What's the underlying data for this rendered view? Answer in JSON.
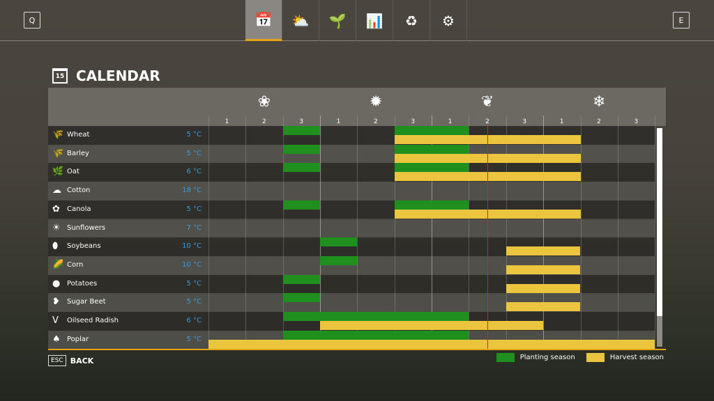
{
  "topbar": {
    "left_key": "Q",
    "right_key": "E",
    "tabs": [
      {
        "name": "calendar",
        "icon": "📅",
        "active": true
      },
      {
        "name": "weather",
        "icon": "⛅"
      },
      {
        "name": "crops",
        "icon": "🌱"
      },
      {
        "name": "prices",
        "icon": "📊"
      },
      {
        "name": "cycle",
        "icon": "♻"
      },
      {
        "name": "settings",
        "icon": "⚙"
      }
    ]
  },
  "page": {
    "title": "CALENDAR",
    "calendar_icon_day": "15"
  },
  "seasons": [
    {
      "name": "spring",
      "icon": "❀"
    },
    {
      "name": "summer",
      "icon": "✹"
    },
    {
      "name": "autumn",
      "icon": "❦"
    },
    {
      "name": "winter",
      "icon": "❄"
    }
  ],
  "periods": [
    "1",
    "2",
    "3",
    "1",
    "2",
    "3",
    "1",
    "2",
    "3",
    "1",
    "2",
    "3"
  ],
  "current_period": 7.5,
  "crops": [
    {
      "name": "Wheat",
      "icon": "🌾",
      "temp": "5 °C",
      "planting": [
        [
          2,
          3
        ],
        [
          5,
          7
        ]
      ],
      "harvest": [
        [
          5,
          10
        ]
      ]
    },
    {
      "name": "Barley",
      "icon": "🌾",
      "temp": "5 °C",
      "planting": [
        [
          2,
          3
        ],
        [
          5,
          7
        ]
      ],
      "harvest": [
        [
          5,
          10
        ]
      ]
    },
    {
      "name": "Oat",
      "icon": "🌿",
      "temp": "6 °C",
      "planting": [
        [
          2,
          3
        ],
        [
          5,
          7
        ]
      ],
      "harvest": [
        [
          5,
          10
        ]
      ]
    },
    {
      "name": "Cotton",
      "icon": "☁",
      "temp": "18 °C",
      "planting": [],
      "harvest": []
    },
    {
      "name": "Canola",
      "icon": "✿",
      "temp": "5 °C",
      "planting": [
        [
          2,
          3
        ],
        [
          5,
          7
        ]
      ],
      "harvest": [
        [
          5,
          10
        ]
      ]
    },
    {
      "name": "Sunflowers",
      "icon": "☀",
      "temp": "7 °C",
      "planting": [],
      "harvest": []
    },
    {
      "name": "Soybeans",
      "icon": "⬮",
      "temp": "10 °C",
      "planting": [
        [
          3,
          4
        ]
      ],
      "harvest": [
        [
          8,
          10
        ]
      ]
    },
    {
      "name": "Corn",
      "icon": "🌽",
      "temp": "10 °C",
      "planting": [
        [
          3,
          4
        ]
      ],
      "harvest": [
        [
          8,
          10
        ]
      ]
    },
    {
      "name": "Potatoes",
      "icon": "●",
      "temp": "5 °C",
      "planting": [
        [
          2,
          3
        ]
      ],
      "harvest": [
        [
          8,
          10
        ]
      ]
    },
    {
      "name": "Sugar Beet",
      "icon": "❥",
      "temp": "5 °C",
      "planting": [
        [
          2,
          3
        ]
      ],
      "harvest": [
        [
          8,
          10
        ]
      ]
    },
    {
      "name": "Oilseed Radish",
      "icon": "Ⅴ",
      "temp": "6 °C",
      "planting": [
        [
          2,
          7
        ]
      ],
      "harvest": [
        [
          3,
          9
        ]
      ]
    },
    {
      "name": "Poplar",
      "icon": "♠",
      "temp": "5 °C",
      "planting": [
        [
          2,
          7
        ]
      ],
      "harvest": [
        [
          0,
          12
        ]
      ]
    }
  ],
  "footer": {
    "back_key": "ESC",
    "back_label": "BACK",
    "legend": {
      "planting": "Planting season",
      "harvest": "Harvest season"
    }
  },
  "colors": {
    "planting": "#1f8f1e",
    "harvest": "#eac53d",
    "accent": "#e8a317",
    "temp": "#3d9ad8",
    "now": "#e02020"
  }
}
